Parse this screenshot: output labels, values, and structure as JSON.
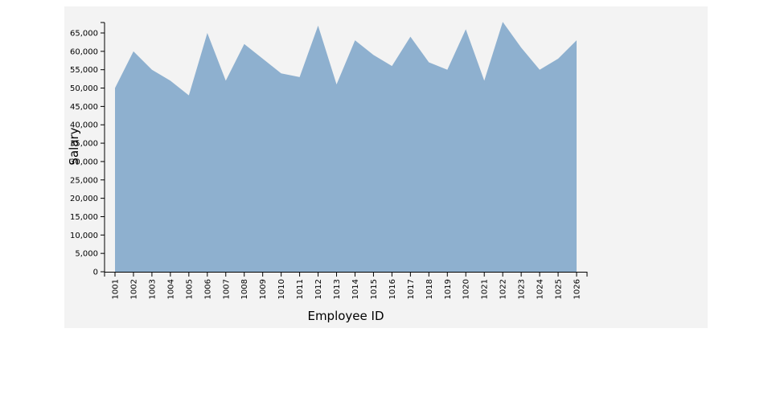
{
  "chart_data": {
    "type": "area",
    "xlabel": "Employee ID",
    "ylabel": "Salary",
    "ylim": [
      0,
      68000
    ],
    "y_ticks": [
      0,
      5000,
      10000,
      15000,
      20000,
      25000,
      30000,
      35000,
      40000,
      45000,
      50000,
      55000,
      60000,
      65000
    ],
    "y_tick_labels": [
      "0",
      "5,000",
      "10,000",
      "15,000",
      "20,000",
      "25,000",
      "30,000",
      "35,000",
      "40,000",
      "45,000",
      "50,000",
      "55,000",
      "60,000",
      "65,000"
    ],
    "categories": [
      "1001",
      "1002",
      "1003",
      "1004",
      "1005",
      "1006",
      "1007",
      "1008",
      "1009",
      "1010",
      "1011",
      "1012",
      "1013",
      "1014",
      "1015",
      "1016",
      "1017",
      "1018",
      "1019",
      "1020",
      "1021",
      "1022",
      "1023",
      "1024",
      "1025",
      "1026"
    ],
    "values": [
      50000,
      60000,
      55000,
      52000,
      48000,
      65000,
      52000,
      62000,
      58000,
      54000,
      53000,
      67000,
      51000,
      63000,
      59000,
      56000,
      64000,
      57000,
      55000,
      66000,
      52000,
      68000,
      61000,
      55000,
      58000,
      63000
    ],
    "fill_color": "#8eb0cf",
    "background_color": "#f3f3f3",
    "grid": false,
    "legend": "none"
  }
}
